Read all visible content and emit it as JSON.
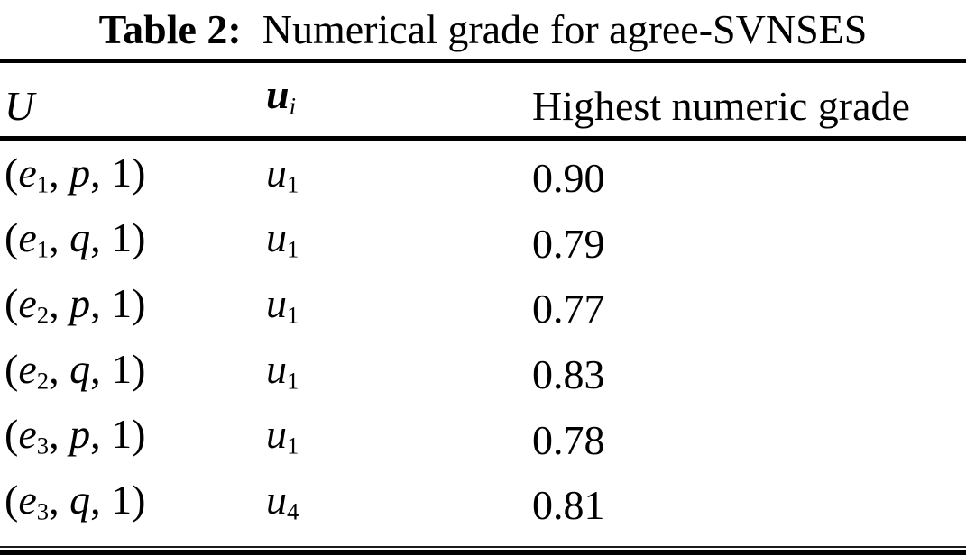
{
  "title": {
    "parts": [
      [
        "Table 2:",
        "b"
      ],
      [
        "  Numerical grade for agree-SVNSES",
        ""
      ]
    ]
  },
  "colors": {
    "text": "#000000",
    "background": "#ffffff",
    "rule": "#000000"
  },
  "table": {
    "headers": [
      {
        "key": "U",
        "parts": [
          [
            "U",
            "i"
          ]
        ]
      },
      {
        "key": "ui",
        "parts": [
          [
            "u",
            "bi"
          ],
          [
            "i",
            "sub i"
          ]
        ]
      },
      {
        "key": "grade",
        "parts": [
          [
            "Highest numeric grade",
            ""
          ]
        ]
      }
    ],
    "rows": [
      [
        [
          [
            "(",
            ""
          ],
          [
            "e",
            "i"
          ],
          [
            "1",
            "sub"
          ],
          [
            ", ",
            ""
          ],
          [
            "p",
            "i"
          ],
          [
            ", 1)",
            ""
          ]
        ],
        [
          [
            "u",
            "i"
          ],
          [
            "1",
            "sub"
          ]
        ],
        [
          [
            "0.90",
            ""
          ]
        ]
      ],
      [
        [
          [
            "(",
            ""
          ],
          [
            "e",
            "i"
          ],
          [
            "1",
            "sub"
          ],
          [
            ", ",
            ""
          ],
          [
            "q",
            "i"
          ],
          [
            ", 1)",
            ""
          ]
        ],
        [
          [
            "u",
            "i"
          ],
          [
            "1",
            "sub"
          ]
        ],
        [
          [
            "0.79",
            ""
          ]
        ]
      ],
      [
        [
          [
            "(",
            ""
          ],
          [
            "e",
            "i"
          ],
          [
            "2",
            "sub"
          ],
          [
            ", ",
            ""
          ],
          [
            "p",
            "i"
          ],
          [
            ", 1)",
            ""
          ]
        ],
        [
          [
            "u",
            "i"
          ],
          [
            "1",
            "sub"
          ]
        ],
        [
          [
            "0.77",
            ""
          ]
        ]
      ],
      [
        [
          [
            "(",
            ""
          ],
          [
            "e",
            "i"
          ],
          [
            "2",
            "sub"
          ],
          [
            ", ",
            ""
          ],
          [
            "q",
            "i"
          ],
          [
            ", 1)",
            ""
          ]
        ],
        [
          [
            "u",
            "i"
          ],
          [
            "1",
            "sub"
          ]
        ],
        [
          [
            "0.83",
            ""
          ]
        ]
      ],
      [
        [
          [
            "(",
            ""
          ],
          [
            "e",
            "i"
          ],
          [
            "3",
            "sub"
          ],
          [
            ", ",
            ""
          ],
          [
            "p",
            "i"
          ],
          [
            ", 1)",
            ""
          ]
        ],
        [
          [
            "u",
            "i"
          ],
          [
            "1",
            "sub"
          ]
        ],
        [
          [
            "0.78",
            ""
          ]
        ]
      ],
      [
        [
          [
            "(",
            ""
          ],
          [
            "e",
            "i"
          ],
          [
            "3",
            "sub"
          ],
          [
            ", ",
            ""
          ],
          [
            "q",
            "i"
          ],
          [
            ", 1)",
            ""
          ]
        ],
        [
          [
            "u",
            "i"
          ],
          [
            "4",
            "sub"
          ]
        ],
        [
          [
            "0.81",
            ""
          ]
        ]
      ]
    ]
  }
}
